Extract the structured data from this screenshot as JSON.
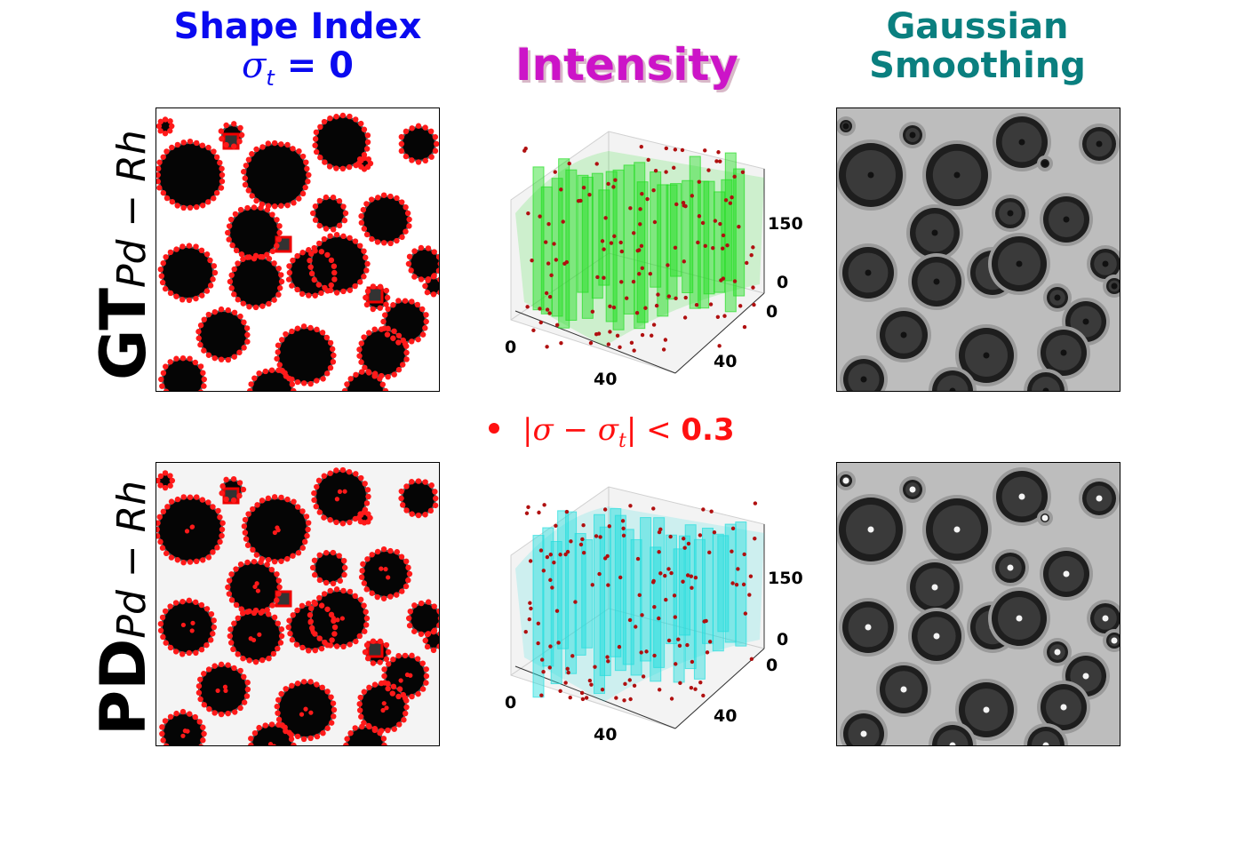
{
  "column_titles": {
    "shape_index": {
      "line1": "Shape Index",
      "line2": " = 0",
      "sigma_symbol": "σ",
      "sigma_sub": "t",
      "color": "#0a0af0"
    },
    "intensity": {
      "label": "Intensity",
      "color": "#cc14c8"
    },
    "gaussian": {
      "line1": "Gaussian",
      "line2": "Smoothing",
      "color": "#0a7f7f"
    }
  },
  "row_labels": {
    "gt": {
      "main": "GT",
      "sub": "Pd − Rh"
    },
    "pd": {
      "main": "PD",
      "sub": "Pd − Rh"
    }
  },
  "legend": {
    "marker_color": "#ff1010",
    "expression": "|σ − σ",
    "sub": "t",
    "tail": "| < ",
    "threshold": "0.3"
  },
  "chart_data": [
    {
      "type": "heatmap",
      "panel": "shape-index-gt",
      "colormap": "gray",
      "overlay": "red points where |σ − σt| < 0.3"
    },
    {
      "type": "surface-3d",
      "panel": "intensity-gt",
      "surface_color": "#22dd22",
      "point_color": "#cc1111",
      "x_ticks": [
        "0",
        "40"
      ],
      "y_ticks": [
        "0",
        "40"
      ],
      "z_ticks": [
        "0",
        "150"
      ]
    },
    {
      "type": "heatmap",
      "panel": "gaussian-gt",
      "colormap": "gray"
    },
    {
      "type": "heatmap",
      "panel": "shape-index-pd",
      "colormap": "gray",
      "overlay": "red points where |σ − σt| < 0.3"
    },
    {
      "type": "surface-3d",
      "panel": "intensity-pd",
      "surface_color": "#22dddd",
      "point_color": "#cc1111",
      "x_ticks": [
        "0",
        "40"
      ],
      "y_ticks": [
        "0",
        "40"
      ],
      "z_ticks": [
        "0",
        "150"
      ]
    },
    {
      "type": "heatmap",
      "panel": "gaussian-pd",
      "colormap": "gray"
    }
  ]
}
